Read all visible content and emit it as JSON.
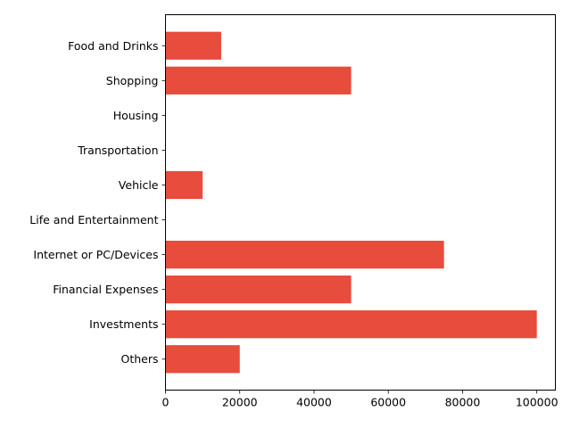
{
  "chart_data": {
    "type": "bar",
    "orientation": "horizontal",
    "title": "",
    "xlabel": "",
    "ylabel": "",
    "categories": [
      "Food and Drinks",
      "Shopping",
      "Housing",
      "Transportation",
      "Vehicle",
      "Life and Entertainment",
      "Internet or PC/Devices",
      "Financial Expenses",
      "Investments",
      "Others"
    ],
    "values": [
      15000,
      50000,
      0,
      0,
      10000,
      0,
      75000,
      50000,
      100000,
      20000
    ],
    "xlim": [
      0,
      105000
    ],
    "xticks": [
      0,
      20000,
      40000,
      60000,
      80000,
      100000
    ],
    "xtick_labels": [
      "0",
      "20000",
      "40000",
      "60000",
      "80000",
      "100000"
    ],
    "grid": false,
    "legend": "none",
    "colors": {
      "bar": "#e74c3c",
      "axis": "#000000",
      "background": "#ffffff"
    }
  }
}
